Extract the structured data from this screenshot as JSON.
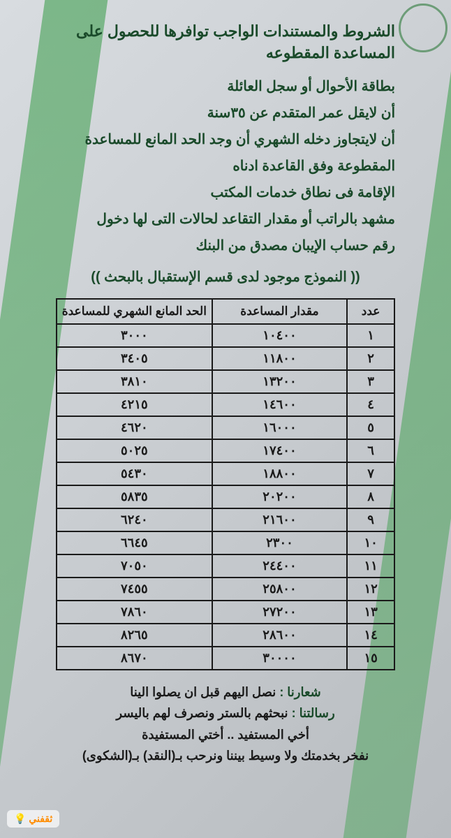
{
  "title": "الشروط والمستندات الواجب توافرها للحصول على المساعدة المقطوعه",
  "requirements": [
    "بطاقة الأحوال أو سجل العائلة",
    "أن لايقل عمر المتقدم عن ٣٥سنة",
    "أن لايتجاوز دخله الشهري أن وجد الحد المانع للمساعدة",
    "المقطوعة وفق القاعدة ادناه",
    "الإقامة فى نطاق خدمات المكتب",
    "مشهد بالراتب أو مقدار التقاعد لحالات التى لها دخول",
    "رقم حساب الإيبان مصدق من البنك"
  ],
  "note": "(( النموذج موجود لدى قسم الإستقبال بالبحث ))",
  "table": {
    "headers": {
      "num": "عدد",
      "amount": "مقدار المساعدة",
      "limit": "الحد المانع الشهري للمساعدة"
    },
    "rows": [
      {
        "num": "١",
        "amount": "١٠٤٠٠",
        "limit": "٣٠٠٠"
      },
      {
        "num": "٢",
        "amount": "١١٨٠٠",
        "limit": "٣٤٠٥"
      },
      {
        "num": "٣",
        "amount": "١٣٢٠٠",
        "limit": "٣٨١٠"
      },
      {
        "num": "٤",
        "amount": "١٤٦٠٠",
        "limit": "٤٢١٥"
      },
      {
        "num": "٥",
        "amount": "١٦٠٠٠",
        "limit": "٤٦٢٠"
      },
      {
        "num": "٦",
        "amount": "١٧٤٠٠",
        "limit": "٥٠٢٥"
      },
      {
        "num": "٧",
        "amount": "١٨٨٠٠",
        "limit": "٥٤٣٠"
      },
      {
        "num": "٨",
        "amount": "٢٠٢٠٠",
        "limit": "٥٨٣٥"
      },
      {
        "num": "٩",
        "amount": "٢١٦٠٠",
        "limit": "٦٢٤٠"
      },
      {
        "num": "١٠",
        "amount": "٢٣٠٠",
        "limit": "٦٦٤٥"
      },
      {
        "num": "١١",
        "amount": "٢٤٤٠٠",
        "limit": "٧٠٥٠"
      },
      {
        "num": "١٢",
        "amount": "٢٥٨٠٠",
        "limit": "٧٤٥٥"
      },
      {
        "num": "١٣",
        "amount": "٢٧٢٠٠",
        "limit": "٧٨٦٠"
      },
      {
        "num": "١٤",
        "amount": "٢٨٦٠٠",
        "limit": "٨٢٦٥"
      },
      {
        "num": "١٥",
        "amount": "٣٠٠٠٠",
        "limit": "٨٦٧٠"
      }
    ]
  },
  "footer": {
    "slogan_label": "شعارنا :",
    "slogan": "نصل اليهم قبل ان يصلوا الينا",
    "mission_label": "رسالتنا :",
    "mission": "نبحثهم بالستر ونصرف لهم باليسر",
    "line3": "أخي المستفيد .. أختي المستفيدة",
    "line4": "نفخر بخدمتك ولا وسيط بيننا ونرحب بـ(النقد) بـ(الشكوى)"
  },
  "watermark": "ثقفني",
  "colors": {
    "text_green": "#1a4a2a",
    "text_black": "#1a1a1a",
    "stripe_green": "#4ca45b",
    "background": "#cfd2d6"
  }
}
